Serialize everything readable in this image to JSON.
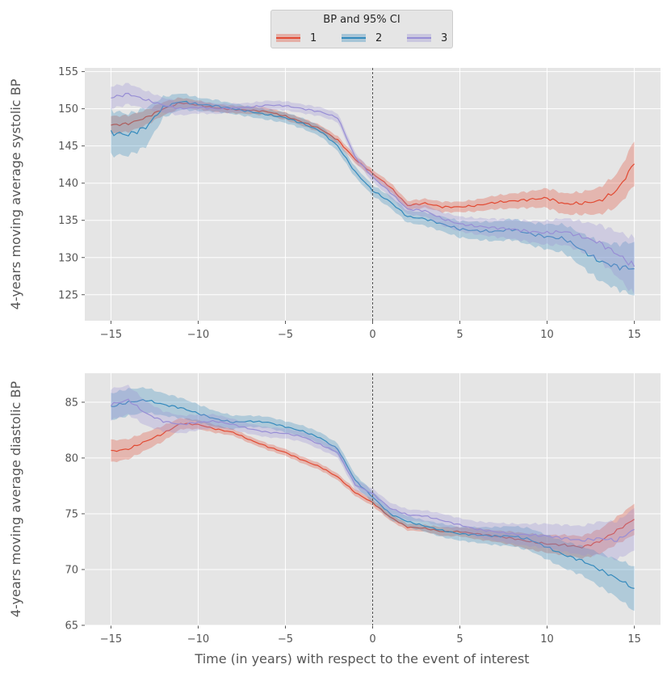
{
  "legend": {
    "title": "BP and 95% CI",
    "position": "top-center",
    "entries": [
      {
        "label": "1",
        "color": "#e24a33"
      },
      {
        "label": "2",
        "color": "#348abd"
      },
      {
        "label": "3",
        "color": "#988ed5"
      }
    ]
  },
  "chart_data": [
    {
      "type": "line",
      "title": "",
      "xlabel": "",
      "ylabel": "4-years moving average systolic BP",
      "xlim": [
        -16.5,
        16.5
      ],
      "ylim": [
        121.5,
        155.5
      ],
      "xticks": [
        -15,
        -10,
        -5,
        0,
        5,
        10,
        15
      ],
      "yticks": [
        125,
        130,
        135,
        140,
        145,
        150,
        155
      ],
      "grid": true,
      "vline_x": 0,
      "x": [
        -15,
        -14,
        -13,
        -12,
        -11,
        -10,
        -9,
        -8,
        -7,
        -6,
        -5,
        -4,
        -3,
        -2,
        -1,
        0,
        1,
        2,
        3,
        4,
        5,
        6,
        7,
        8,
        9,
        10,
        11,
        12,
        13,
        14,
        15
      ],
      "series": [
        {
          "name": "1",
          "values": [
            147.8,
            148.0,
            148.8,
            150.0,
            150.8,
            150.5,
            150.1,
            149.9,
            149.8,
            149.6,
            149.0,
            148.2,
            147.3,
            145.8,
            143.2,
            141.3,
            139.5,
            137.0,
            137.3,
            136.8,
            136.8,
            137.0,
            137.4,
            137.6,
            137.8,
            138.0,
            137.2,
            137.3,
            137.6,
            139.0,
            142.6
          ],
          "ci_halfwidth": [
            1.2,
            1.1,
            1.0,
            0.9,
            0.7,
            0.6,
            0.5,
            0.5,
            0.5,
            0.5,
            0.5,
            0.5,
            0.5,
            0.5,
            0.5,
            0.5,
            0.6,
            0.6,
            0.6,
            0.7,
            0.7,
            0.8,
            0.9,
            1.0,
            1.1,
            1.3,
            1.4,
            1.5,
            1.8,
            2.2,
            3.0
          ]
        },
        {
          "name": "2",
          "values": [
            146.8,
            146.5,
            147.5,
            150.2,
            151.0,
            150.6,
            150.4,
            150.0,
            149.6,
            149.2,
            148.8,
            148.0,
            147.0,
            145.0,
            141.5,
            139.0,
            137.5,
            135.5,
            135.2,
            134.5,
            133.8,
            133.6,
            133.5,
            133.8,
            133.2,
            132.8,
            132.5,
            131.0,
            129.5,
            128.8,
            128.5
          ],
          "ci_halfwidth": [
            3.0,
            2.8,
            2.6,
            1.4,
            1.1,
            0.9,
            0.8,
            0.7,
            0.7,
            0.7,
            0.7,
            0.7,
            0.7,
            0.7,
            0.7,
            0.7,
            0.8,
            0.8,
            0.9,
            1.0,
            1.1,
            1.2,
            1.3,
            1.4,
            1.5,
            1.7,
            1.9,
            2.2,
            2.6,
            3.0,
            3.6
          ]
        },
        {
          "name": "3",
          "values": [
            151.5,
            152.0,
            151.2,
            150.5,
            150.0,
            150.2,
            150.0,
            150.1,
            150.2,
            150.5,
            150.4,
            150.0,
            149.6,
            148.8,
            143.5,
            140.8,
            138.8,
            136.5,
            136.3,
            135.2,
            134.5,
            134.2,
            134.0,
            133.8,
            133.5,
            133.3,
            133.5,
            132.8,
            132.0,
            130.5,
            128.8
          ],
          "ci_halfwidth": [
            1.5,
            1.4,
            1.2,
            1.0,
            0.9,
            0.8,
            0.7,
            0.6,
            0.6,
            0.6,
            0.6,
            0.6,
            0.6,
            0.6,
            0.6,
            0.6,
            0.7,
            0.7,
            0.8,
            0.9,
            1.0,
            1.1,
            1.2,
            1.3,
            1.4,
            1.6,
            1.8,
            2.0,
            2.4,
            3.0,
            3.8
          ]
        }
      ]
    },
    {
      "type": "line",
      "title": "",
      "xlabel": "Time (in years) with respect to the event of interest",
      "ylabel": "4-years moving average diastolic BP",
      "xlim": [
        -16.5,
        16.5
      ],
      "ylim": [
        65,
        87.6
      ],
      "xticks": [
        -15,
        -10,
        -5,
        0,
        5,
        10,
        15
      ],
      "yticks": [
        65,
        70,
        75,
        80,
        85
      ],
      "grid": true,
      "vline_x": 0,
      "x": [
        -15,
        -14,
        -13,
        -12,
        -11,
        -10,
        -9,
        -8,
        -7,
        -6,
        -5,
        -4,
        -3,
        -2,
        -1,
        0,
        1,
        2,
        3,
        4,
        5,
        6,
        7,
        8,
        9,
        10,
        11,
        12,
        13,
        14,
        15
      ],
      "series": [
        {
          "name": "1",
          "values": [
            80.6,
            80.8,
            81.5,
            82.2,
            83.1,
            83.0,
            82.6,
            82.3,
            81.6,
            81.0,
            80.5,
            79.8,
            79.2,
            78.3,
            76.9,
            76.0,
            74.7,
            73.8,
            73.7,
            73.4,
            73.4,
            73.2,
            73.0,
            72.8,
            72.5,
            72.3,
            72.2,
            72.0,
            72.5,
            73.5,
            74.5
          ],
          "ci_halfwidth": [
            1.0,
            0.9,
            0.8,
            0.7,
            0.5,
            0.4,
            0.35,
            0.3,
            0.3,
            0.3,
            0.3,
            0.3,
            0.3,
            0.3,
            0.3,
            0.3,
            0.3,
            0.3,
            0.3,
            0.4,
            0.4,
            0.5,
            0.5,
            0.6,
            0.7,
            0.8,
            0.9,
            1.0,
            1.1,
            1.2,
            1.4
          ]
        },
        {
          "name": "2",
          "values": [
            84.6,
            85.0,
            85.2,
            84.8,
            84.5,
            84.0,
            83.5,
            83.2,
            83.3,
            83.2,
            82.8,
            82.4,
            81.8,
            80.8,
            78.0,
            76.5,
            75.0,
            74.3,
            73.9,
            73.5,
            73.2,
            73.1,
            73.0,
            73.0,
            72.7,
            72.0,
            71.3,
            70.8,
            70.0,
            69.2,
            68.3
          ],
          "ci_halfwidth": [
            1.2,
            1.2,
            1.1,
            1.0,
            0.9,
            0.8,
            0.7,
            0.6,
            0.5,
            0.5,
            0.5,
            0.5,
            0.5,
            0.5,
            0.5,
            0.5,
            0.5,
            0.5,
            0.5,
            0.6,
            0.6,
            0.7,
            0.8,
            0.9,
            1.0,
            1.1,
            1.2,
            1.3,
            1.5,
            1.7,
            2.0
          ]
        },
        {
          "name": "3",
          "values": [
            84.8,
            85.2,
            84.0,
            83.3,
            83.0,
            83.2,
            83.3,
            83.0,
            82.6,
            82.3,
            82.2,
            81.9,
            81.2,
            80.5,
            77.6,
            76.8,
            75.5,
            74.9,
            74.8,
            74.4,
            74.0,
            73.6,
            73.4,
            73.2,
            73.1,
            73.0,
            72.8,
            72.6,
            72.8,
            72.6,
            73.6
          ],
          "ci_halfwidth": [
            1.4,
            1.3,
            1.1,
            0.9,
            0.8,
            0.7,
            0.6,
            0.5,
            0.45,
            0.45,
            0.45,
            0.45,
            0.45,
            0.45,
            0.45,
            0.45,
            0.5,
            0.5,
            0.5,
            0.6,
            0.6,
            0.7,
            0.8,
            0.9,
            1.0,
            1.1,
            1.2,
            1.3,
            1.5,
            1.7,
            1.9
          ]
        }
      ]
    }
  ]
}
